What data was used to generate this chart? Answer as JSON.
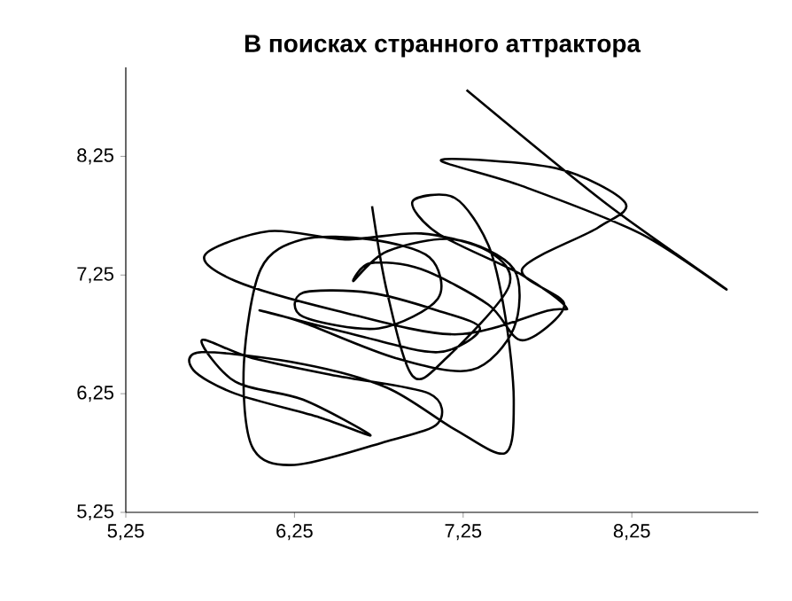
{
  "chart_data": {
    "type": "line",
    "title": "В поисках странного аттрактора",
    "xlim": [
      5.25,
      9.0
    ],
    "ylim": [
      5.25,
      9.0
    ],
    "xticks": [
      {
        "value": 5.25,
        "label": "5,25"
      },
      {
        "value": 6.25,
        "label": "6,25"
      },
      {
        "value": 7.25,
        "label": "7,25"
      },
      {
        "value": 8.25,
        "label": "8,25"
      }
    ],
    "yticks": [
      {
        "value": 5.25,
        "label": "5,25"
      },
      {
        "value": 6.25,
        "label": "6,25"
      },
      {
        "value": 7.25,
        "label": "7,25"
      },
      {
        "value": 8.25,
        "label": "8,25"
      }
    ],
    "grid": false,
    "marker": "none",
    "line_style": "solid",
    "series": [
      {
        "color": "#000000",
        "x": [
          6.71,
          6.8,
          6.95,
          7.15,
          7.52,
          7.4,
          7.0,
          6.55,
          6.1,
          5.72,
          5.9,
          6.5,
          7.2,
          7.75,
          7.86,
          7.6,
          7.1,
          6.95,
          7.2,
          7.4,
          7.5,
          7.55,
          7.5,
          7.2,
          6.8,
          6.3,
          5.7,
          5.65,
          5.9,
          6.4,
          6.7,
          6.3,
          5.9,
          5.7,
          6.0,
          6.5,
          7.05,
          7.1,
          6.8,
          6.25,
          6.0,
          5.95,
          6.05,
          6.3,
          6.7,
          7.05,
          7.1,
          6.75,
          6.3,
          6.3,
          6.7,
          7.1,
          7.35,
          7.1,
          6.6,
          6.05,
          6.3,
          6.85,
          7.3,
          7.55,
          7.55,
          7.2,
          6.8,
          6.6,
          6.7,
          7.0,
          7.4,
          7.6,
          7.85,
          7.6,
          8.05,
          8.21,
          7.8,
          7.12,
          7.6,
          8.3,
          8.81,
          8.1,
          7.27
        ],
        "values": [
          7.83,
          7.1,
          6.4,
          6.55,
          7.15,
          7.45,
          7.6,
          7.55,
          7.62,
          7.42,
          7.2,
          6.95,
          6.75,
          6.95,
          6.98,
          7.25,
          7.6,
          7.87,
          7.9,
          7.5,
          6.9,
          6.2,
          5.75,
          5.95,
          6.3,
          6.5,
          6.6,
          6.45,
          6.25,
          6.05,
          5.9,
          6.2,
          6.35,
          6.7,
          6.55,
          6.4,
          6.25,
          6.0,
          5.85,
          5.65,
          5.8,
          6.5,
          7.3,
          7.55,
          7.55,
          7.4,
          7.05,
          6.8,
          6.9,
          7.1,
          7.1,
          6.95,
          6.8,
          6.6,
          6.75,
          6.95,
          6.85,
          6.55,
          6.45,
          6.8,
          7.3,
          7.55,
          7.45,
          7.2,
          7.35,
          7.3,
          7.0,
          6.7,
          7.0,
          7.3,
          7.65,
          7.86,
          8.15,
          8.22,
          8.0,
          7.6,
          7.13,
          7.85,
          8.81
        ]
      }
    ]
  }
}
